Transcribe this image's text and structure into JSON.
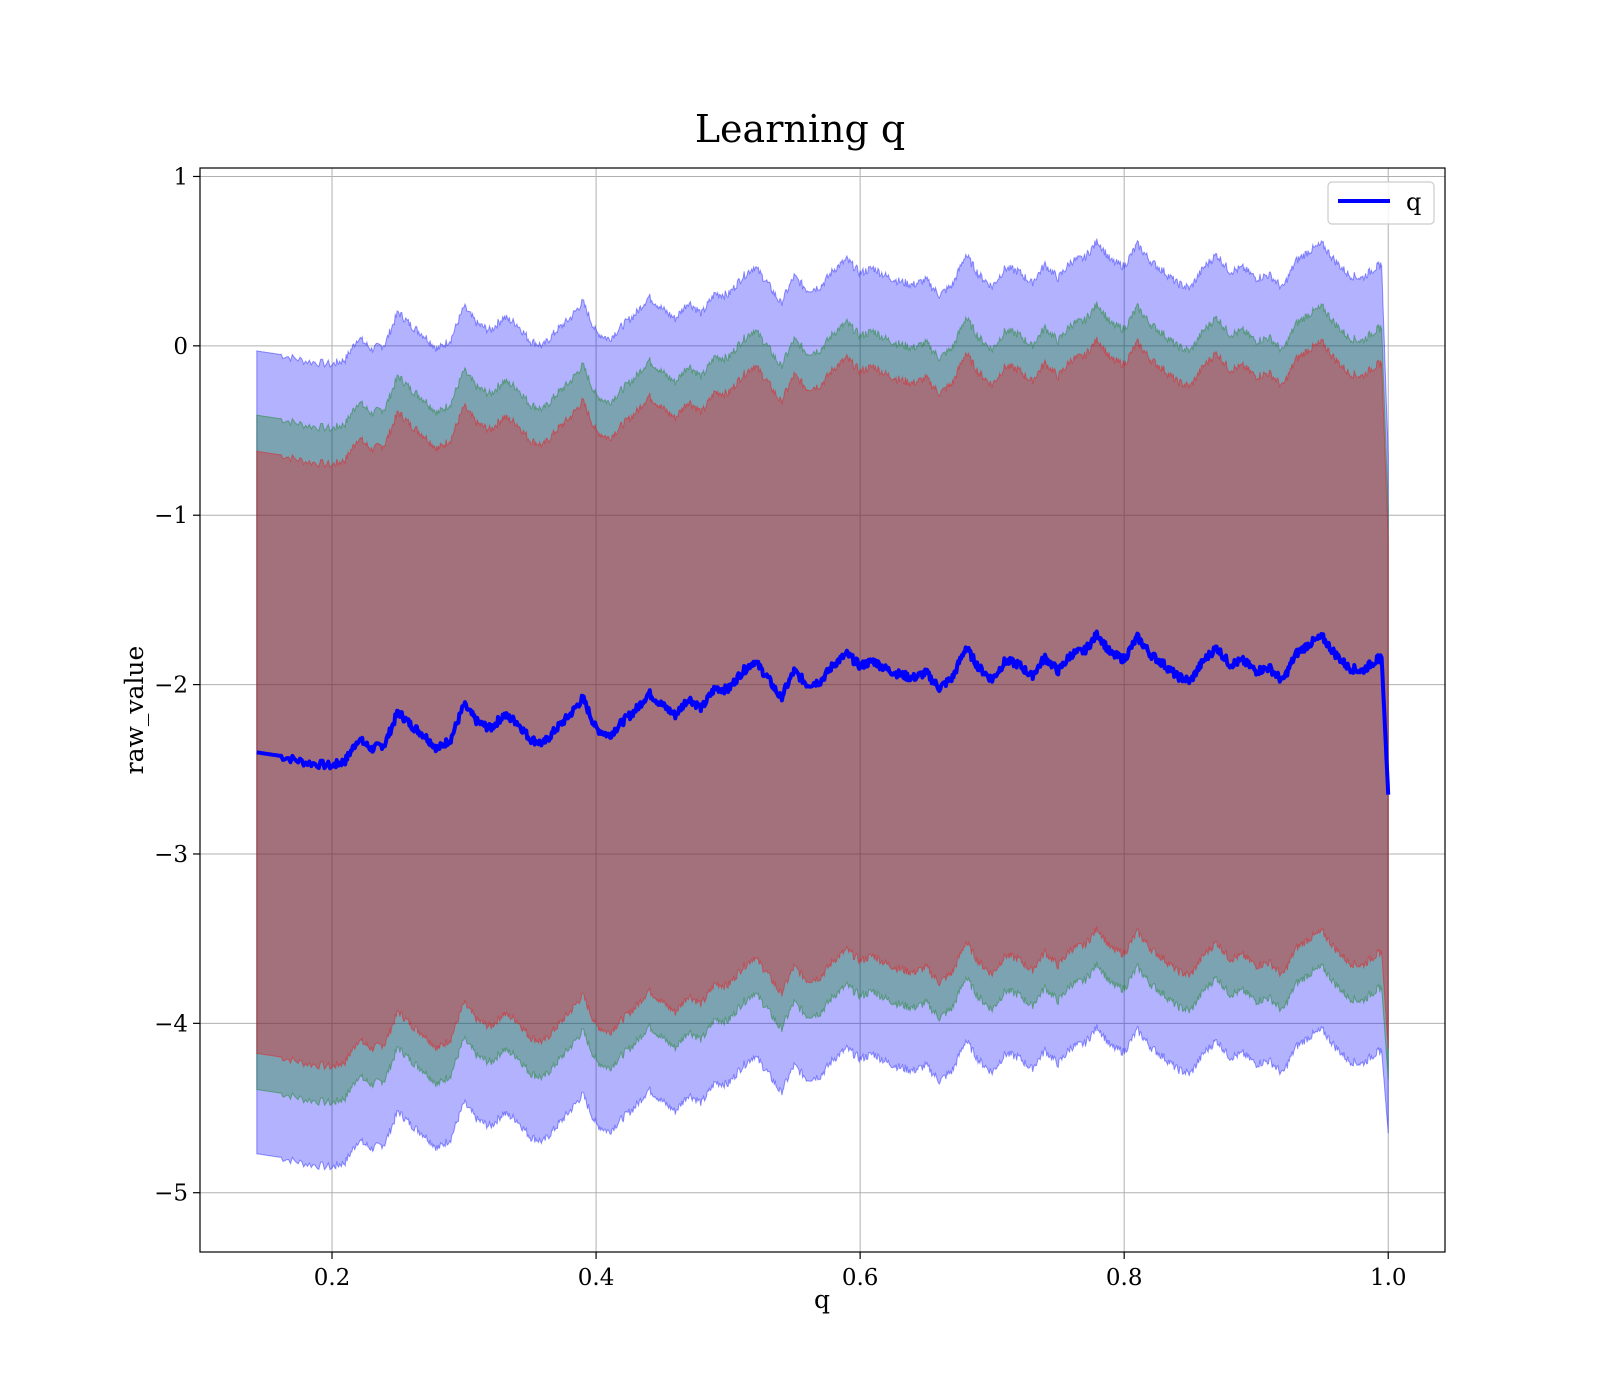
{
  "chart_data": {
    "type": "area",
    "title": "Learning q",
    "xlabel": "q",
    "ylabel": "raw_value",
    "xlim": [
      0.1,
      1.043
    ],
    "ylim": [
      -5.35,
      1.05
    ],
    "xticks": [
      0.2,
      0.4,
      0.6,
      0.8,
      1.0
    ],
    "xtick_labels": [
      "0.2",
      "0.4",
      "0.6",
      "0.8",
      "1.0"
    ],
    "yticks": [
      1,
      0,
      -1,
      -2,
      -3,
      -4,
      -5
    ],
    "ytick_labels": [
      "1",
      "0",
      "−1",
      "−2",
      "−3",
      "−4",
      "−5"
    ],
    "grid": true,
    "legend": {
      "position": "top-right",
      "entries": [
        {
          "name": "q",
          "color": "#0000ff"
        }
      ]
    },
    "x": [
      0.143,
      0.16,
      0.18,
      0.2,
      0.21,
      0.22,
      0.23,
      0.24,
      0.25,
      0.26,
      0.27,
      0.28,
      0.29,
      0.3,
      0.31,
      0.32,
      0.33,
      0.34,
      0.35,
      0.36,
      0.37,
      0.38,
      0.39,
      0.4,
      0.41,
      0.42,
      0.43,
      0.44,
      0.45,
      0.46,
      0.47,
      0.48,
      0.49,
      0.5,
      0.51,
      0.52,
      0.53,
      0.54,
      0.55,
      0.56,
      0.57,
      0.58,
      0.59,
      0.6,
      0.61,
      0.62,
      0.63,
      0.64,
      0.65,
      0.66,
      0.67,
      0.68,
      0.69,
      0.7,
      0.71,
      0.72,
      0.73,
      0.74,
      0.75,
      0.76,
      0.77,
      0.78,
      0.79,
      0.8,
      0.81,
      0.82,
      0.83,
      0.84,
      0.85,
      0.86,
      0.87,
      0.88,
      0.89,
      0.9,
      0.91,
      0.92,
      0.93,
      0.94,
      0.95,
      0.96,
      0.97,
      0.98,
      0.99,
      0.995,
      1.0
    ],
    "mean": [
      -2.4,
      -2.42,
      -2.46,
      -2.48,
      -2.45,
      -2.32,
      -2.38,
      -2.35,
      -2.16,
      -2.24,
      -2.3,
      -2.38,
      -2.32,
      -2.12,
      -2.22,
      -2.26,
      -2.18,
      -2.22,
      -2.32,
      -2.35,
      -2.26,
      -2.18,
      -2.08,
      -2.26,
      -2.3,
      -2.22,
      -2.15,
      -2.05,
      -2.12,
      -2.18,
      -2.08,
      -2.14,
      -2.02,
      -2.03,
      -1.93,
      -1.86,
      -1.96,
      -2.08,
      -1.92,
      -2.0,
      -1.98,
      -1.88,
      -1.82,
      -1.89,
      -1.86,
      -1.91,
      -1.94,
      -1.96,
      -1.93,
      -2.02,
      -1.96,
      -1.78,
      -1.9,
      -1.97,
      -1.86,
      -1.88,
      -1.95,
      -1.84,
      -1.92,
      -1.82,
      -1.8,
      -1.7,
      -1.82,
      -1.85,
      -1.72,
      -1.82,
      -1.88,
      -1.95,
      -1.98,
      -1.86,
      -1.78,
      -1.88,
      -1.86,
      -1.92,
      -1.9,
      -1.98,
      -1.82,
      -1.76,
      -1.72,
      -1.82,
      -1.9,
      -1.92,
      -1.86,
      -1.84,
      -2.65
    ],
    "std": [
      2.37,
      2.37,
      2.37,
      2.37,
      2.37,
      2.37,
      2.36,
      2.36,
      2.36,
      2.36,
      2.36,
      2.36,
      2.36,
      2.35,
      2.35,
      2.35,
      2.35,
      2.35,
      2.35,
      2.35,
      2.35,
      2.34,
      2.34,
      2.34,
      2.34,
      2.34,
      2.34,
      2.34,
      2.34,
      2.34,
      2.34,
      2.33,
      2.33,
      2.33,
      2.33,
      2.33,
      2.33,
      2.33,
      2.33,
      2.33,
      2.33,
      2.33,
      2.33,
      2.32,
      2.32,
      2.32,
      2.32,
      2.32,
      2.32,
      2.32,
      2.32,
      2.32,
      2.32,
      2.32,
      2.32,
      2.32,
      2.32,
      2.32,
      2.32,
      2.32,
      2.32,
      2.32,
      2.32,
      2.32,
      2.32,
      2.32,
      2.32,
      2.32,
      2.32,
      2.32,
      2.32,
      2.32,
      2.32,
      2.32,
      2.32,
      2.32,
      2.32,
      2.32,
      2.32,
      2.32,
      2.32,
      2.32,
      2.32,
      2.32,
      2.0
    ],
    "bands": [
      {
        "k": 1.0,
        "fill": "#0000ff",
        "opacity": 0.3
      },
      {
        "k": 0.84,
        "fill": "#008000",
        "opacity": 0.3
      },
      {
        "k": 0.75,
        "fill": "#ff0000",
        "opacity": 0.3
      }
    ],
    "line_color": "#0000ff"
  }
}
